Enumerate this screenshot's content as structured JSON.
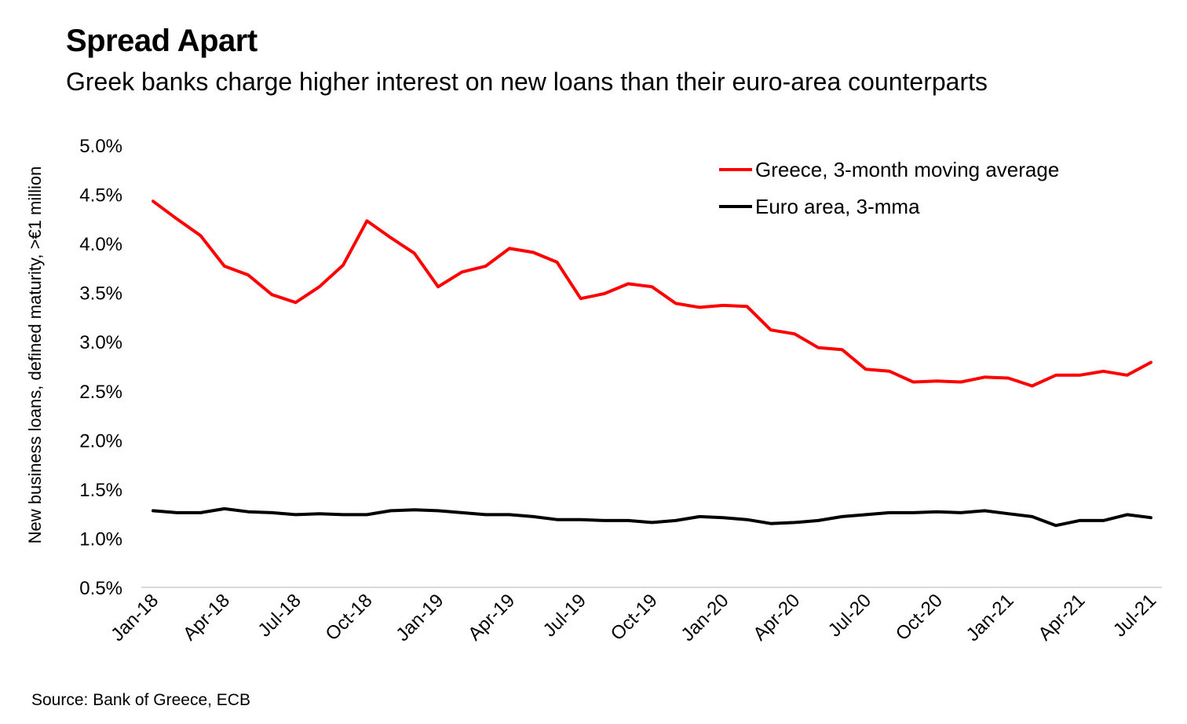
{
  "header": {
    "title": "Spread Apart",
    "subtitle": "Greek banks charge higher interest on new loans than their euro-area counterparts"
  },
  "footer": {
    "source": "Source: Bank of Greece, ECB"
  },
  "chart_data": {
    "type": "line",
    "title": "Spread Apart",
    "subtitle": "Greek banks charge higher interest on new loans than their euro-area counterparts",
    "ylabel": "New business loans, defined maturity, >€1 million",
    "xlabel": "",
    "ylim": [
      0.5,
      5.0
    ],
    "y_ticks": [
      0.5,
      1.0,
      1.5,
      2.0,
      2.5,
      3.0,
      3.5,
      4.0,
      4.5,
      5.0
    ],
    "y_tick_labels": [
      "0.5%",
      "1.0%",
      "1.5%",
      "2.0%",
      "2.5%",
      "3.0%",
      "3.5%",
      "4.0%",
      "4.5%",
      "5.0%"
    ],
    "x": [
      "Jan-18",
      "Feb-18",
      "Mar-18",
      "Apr-18",
      "May-18",
      "Jun-18",
      "Jul-18",
      "Aug-18",
      "Sep-18",
      "Oct-18",
      "Nov-18",
      "Dec-18",
      "Jan-19",
      "Feb-19",
      "Mar-19",
      "Apr-19",
      "May-19",
      "Jun-19",
      "Jul-19",
      "Aug-19",
      "Sep-19",
      "Oct-19",
      "Nov-19",
      "Dec-19",
      "Jan-20",
      "Feb-20",
      "Mar-20",
      "Apr-20",
      "May-20",
      "Jun-20",
      "Jul-20",
      "Aug-20",
      "Sep-20",
      "Oct-20",
      "Nov-20",
      "Dec-20",
      "Jan-21",
      "Feb-21",
      "Mar-21",
      "Apr-21",
      "May-21",
      "Jun-21",
      "Jul-21"
    ],
    "x_tick_labels": [
      "Jan-18",
      "Apr-18",
      "Jul-18",
      "Oct-18",
      "Jan-19",
      "Apr-19",
      "Jul-19",
      "Oct-19",
      "Jan-20",
      "Apr-20",
      "Jul-20",
      "Oct-20",
      "Jan-21",
      "Apr-21",
      "Jul-21"
    ],
    "x_tick_every": 3,
    "grid": false,
    "legend": "top-right",
    "series": [
      {
        "name": "Greece, 3-month moving average",
        "color": "#ff0000",
        "values": [
          4.43,
          4.25,
          4.08,
          3.77,
          3.68,
          3.48,
          3.4,
          3.56,
          3.78,
          4.23,
          4.06,
          3.9,
          3.56,
          3.71,
          3.77,
          3.95,
          3.91,
          3.81,
          3.44,
          3.49,
          3.59,
          3.56,
          3.39,
          3.35,
          3.37,
          3.36,
          3.12,
          3.08,
          2.94,
          2.92,
          2.72,
          2.7,
          2.59,
          2.6,
          2.59,
          2.64,
          2.63,
          2.55,
          2.66,
          2.66,
          2.7,
          2.66,
          2.79
        ]
      },
      {
        "name": "Euro area, 3-mma",
        "color": "#000000",
        "values": [
          1.28,
          1.26,
          1.26,
          1.3,
          1.27,
          1.26,
          1.24,
          1.25,
          1.24,
          1.24,
          1.28,
          1.29,
          1.28,
          1.26,
          1.24,
          1.24,
          1.22,
          1.19,
          1.19,
          1.18,
          1.18,
          1.16,
          1.18,
          1.22,
          1.21,
          1.19,
          1.15,
          1.16,
          1.18,
          1.22,
          1.24,
          1.26,
          1.26,
          1.27,
          1.26,
          1.28,
          1.25,
          1.22,
          1.13,
          1.18,
          1.18,
          1.24,
          1.21
        ]
      }
    ]
  }
}
